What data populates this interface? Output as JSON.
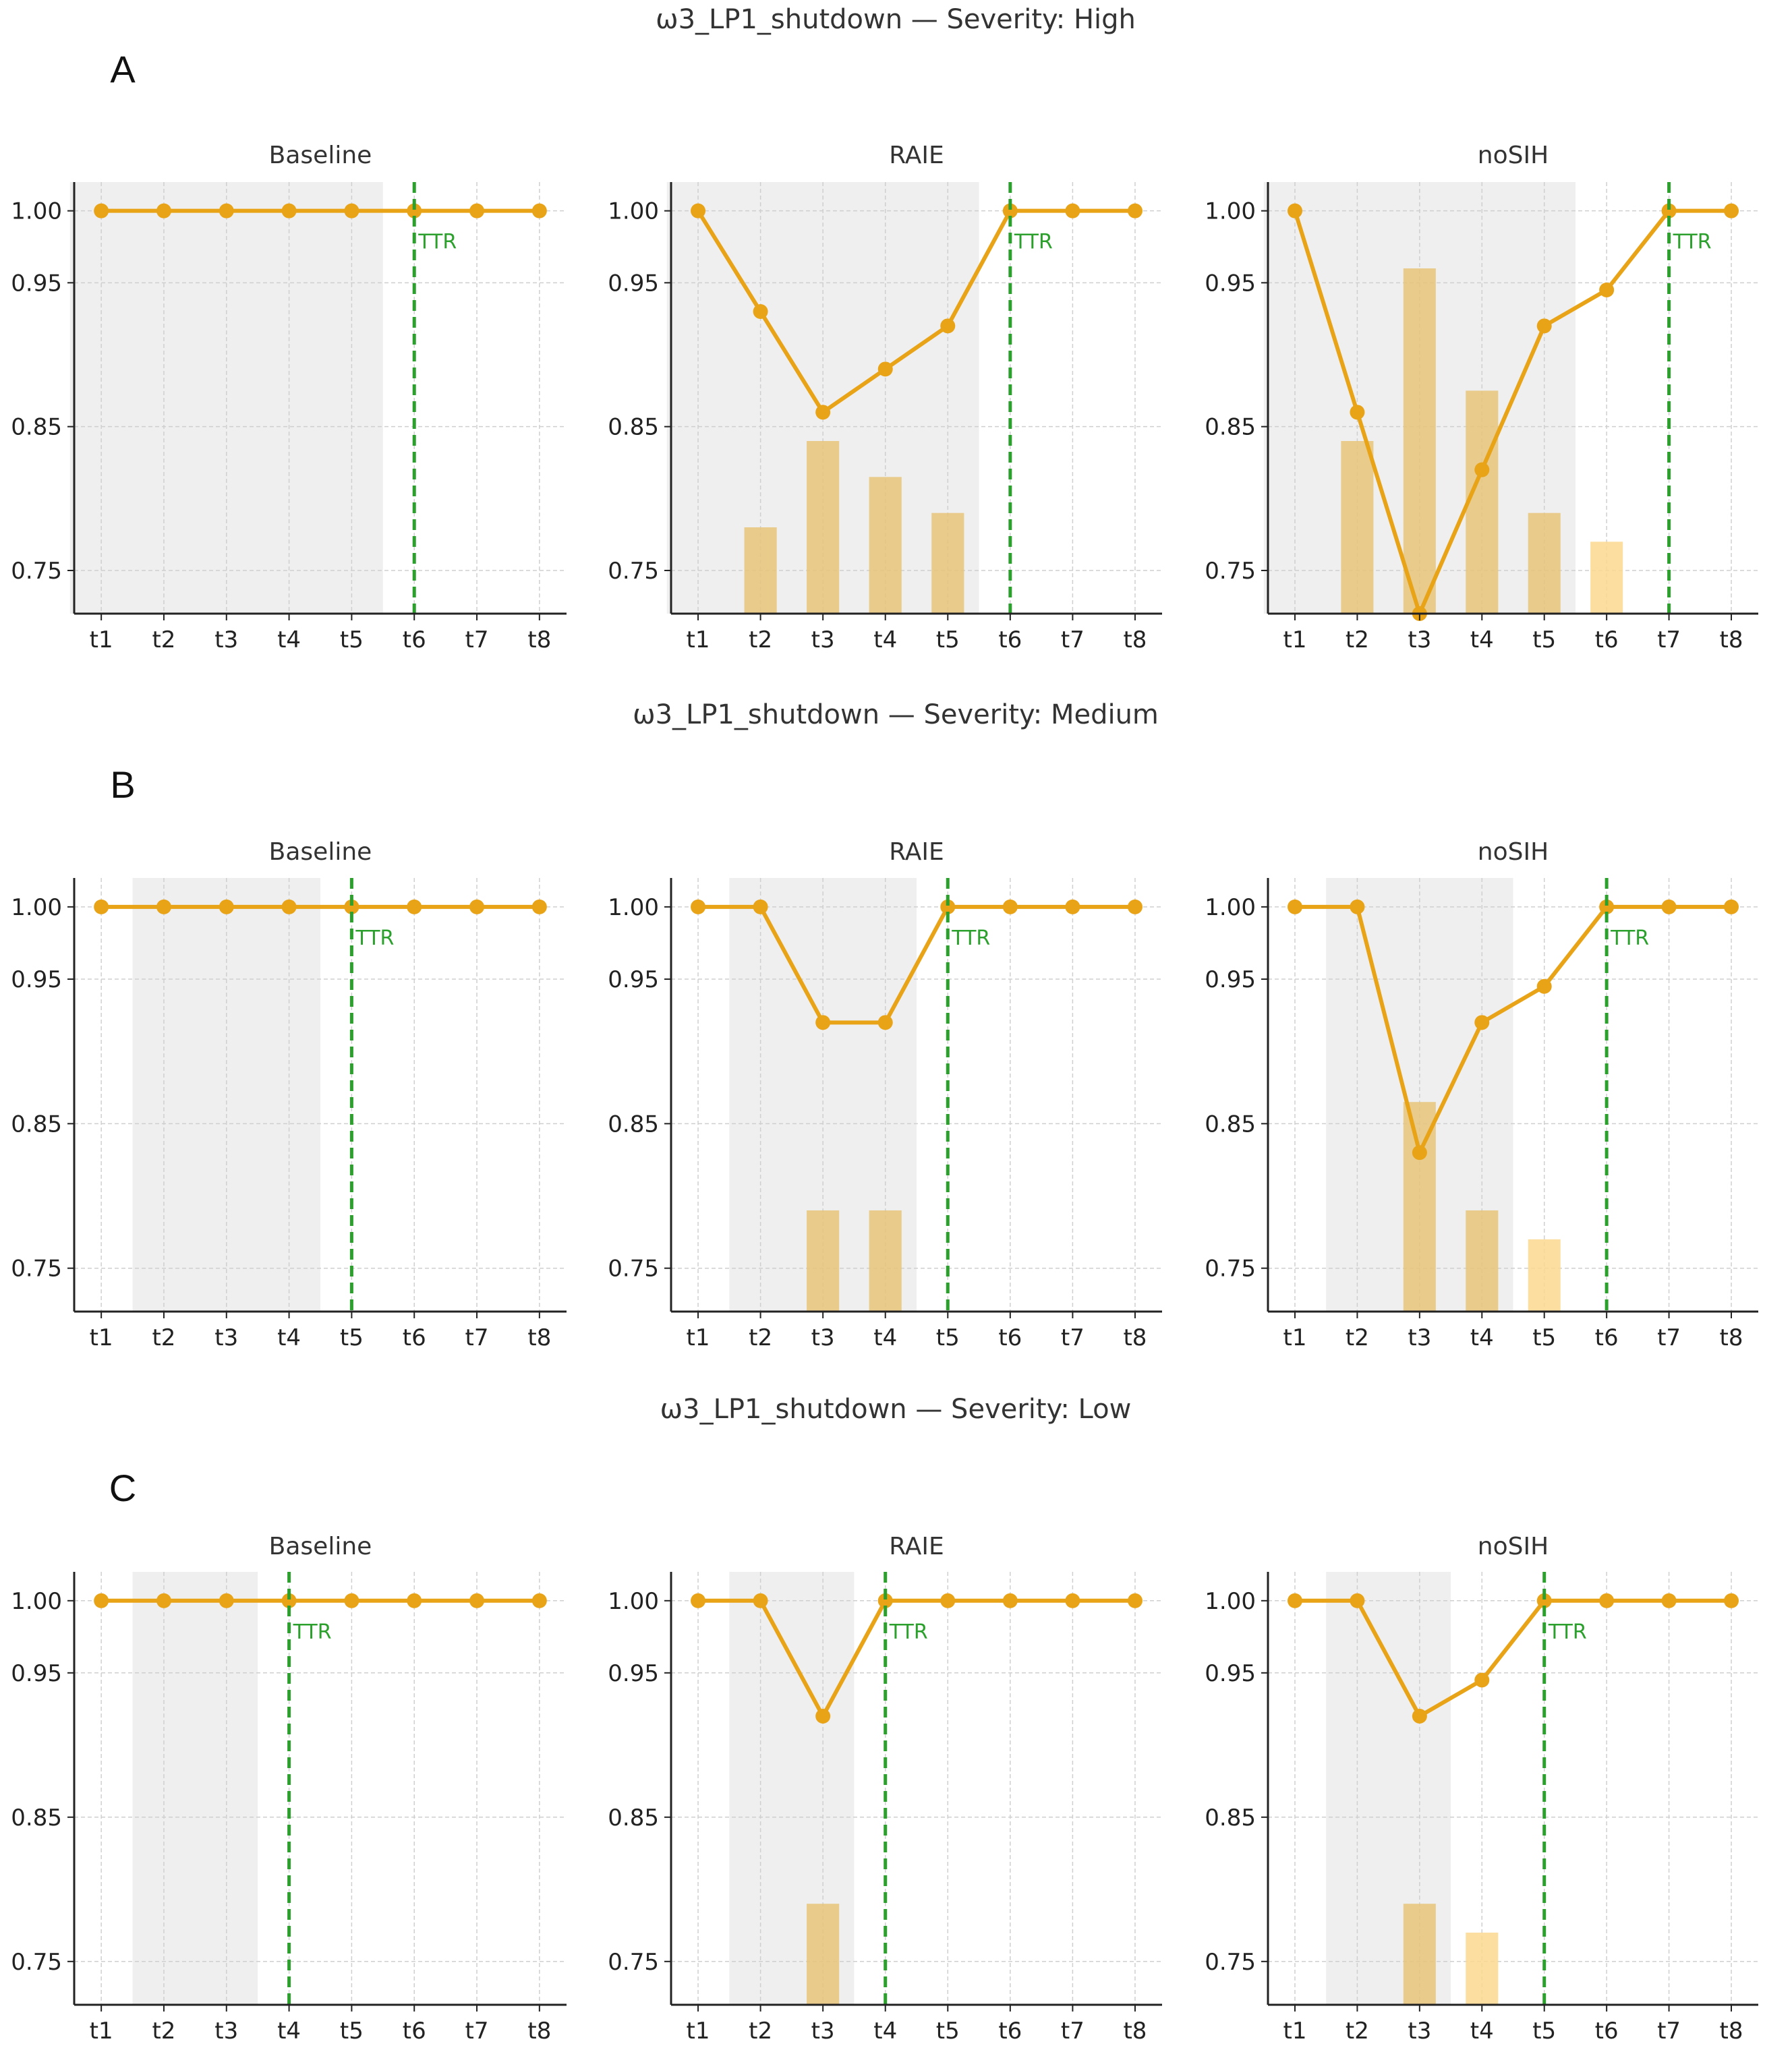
{
  "colors": {
    "line": "#e8a317",
    "bar": "#e8c47a",
    "bar_light": "#fbd98f",
    "shade": "#efefef",
    "ttr": "#2ca02c",
    "grid": "#cfcfcf",
    "axis": "#222222"
  },
  "chart_data": [
    {
      "panel": "A",
      "suptitle": "ω3_LP1_shutdown — Severity: High",
      "severity": "High",
      "subplots": [
        {
          "title": "Baseline",
          "type": "line",
          "categories": [
            "t1",
            "t2",
            "t3",
            "t4",
            "t5",
            "t6",
            "t7",
            "t8"
          ],
          "values": [
            1.0,
            1.0,
            1.0,
            1.0,
            1.0,
            1.0,
            1.0,
            1.0
          ],
          "bars": [
            null,
            null,
            null,
            null,
            null,
            null,
            null,
            null
          ],
          "shade_from": "t1",
          "shade_to": "t5",
          "ttr": "t6",
          "ttr_label": "TTR"
        },
        {
          "title": "RAIE",
          "type": "line",
          "categories": [
            "t1",
            "t2",
            "t3",
            "t4",
            "t5",
            "t6",
            "t7",
            "t8"
          ],
          "values": [
            1.0,
            0.93,
            0.86,
            0.89,
            0.92,
            1.0,
            1.0,
            1.0
          ],
          "bars": [
            null,
            0.78,
            0.84,
            0.815,
            0.79,
            null,
            null,
            null
          ],
          "shade_from": "t1",
          "shade_to": "t5",
          "ttr": "t6",
          "ttr_label": "TTR"
        },
        {
          "title": "noSIH",
          "type": "line",
          "categories": [
            "t1",
            "t2",
            "t3",
            "t4",
            "t5",
            "t6",
            "t7",
            "t8"
          ],
          "values": [
            1.0,
            0.86,
            0.72,
            0.82,
            0.92,
            0.945,
            1.0,
            1.0
          ],
          "bars": [
            null,
            0.84,
            0.96,
            0.875,
            0.79,
            0.77,
            null,
            null
          ],
          "shade_from": "t1",
          "shade_to": "t5",
          "ttr": "t7",
          "ttr_label": "TTR"
        }
      ]
    },
    {
      "panel": "B",
      "suptitle": "ω3_LP1_shutdown — Severity: Medium",
      "severity": "Medium",
      "subplots": [
        {
          "title": "Baseline",
          "type": "line",
          "categories": [
            "t1",
            "t2",
            "t3",
            "t4",
            "t5",
            "t6",
            "t7",
            "t8"
          ],
          "values": [
            1.0,
            1.0,
            1.0,
            1.0,
            1.0,
            1.0,
            1.0,
            1.0
          ],
          "bars": [
            null,
            null,
            null,
            null,
            null,
            null,
            null,
            null
          ],
          "shade_from": "t2",
          "shade_to": "t4",
          "ttr": "t5",
          "ttr_label": "TTR"
        },
        {
          "title": "RAIE",
          "type": "line",
          "categories": [
            "t1",
            "t2",
            "t3",
            "t4",
            "t5",
            "t6",
            "t7",
            "t8"
          ],
          "values": [
            1.0,
            1.0,
            0.92,
            0.92,
            1.0,
            1.0,
            1.0,
            1.0
          ],
          "bars": [
            null,
            null,
            0.79,
            0.79,
            null,
            null,
            null,
            null
          ],
          "shade_from": "t2",
          "shade_to": "t4",
          "ttr": "t5",
          "ttr_label": "TTR"
        },
        {
          "title": "noSIH",
          "type": "line",
          "categories": [
            "t1",
            "t2",
            "t3",
            "t4",
            "t5",
            "t6",
            "t7",
            "t8"
          ],
          "values": [
            1.0,
            1.0,
            0.83,
            0.92,
            0.945,
            1.0,
            1.0,
            1.0
          ],
          "bars": [
            null,
            null,
            0.865,
            0.79,
            0.77,
            null,
            null,
            null
          ],
          "shade_from": "t2",
          "shade_to": "t4",
          "ttr": "t6",
          "ttr_label": "TTR"
        }
      ]
    },
    {
      "panel": "C",
      "suptitle": "ω3_LP1_shutdown — Severity: Low",
      "severity": "Low",
      "subplots": [
        {
          "title": "Baseline",
          "type": "line",
          "categories": [
            "t1",
            "t2",
            "t3",
            "t4",
            "t5",
            "t6",
            "t7",
            "t8"
          ],
          "values": [
            1.0,
            1.0,
            1.0,
            1.0,
            1.0,
            1.0,
            1.0,
            1.0
          ],
          "bars": [
            null,
            null,
            null,
            null,
            null,
            null,
            null,
            null
          ],
          "shade_from": "t2",
          "shade_to": "t3",
          "ttr": "t4",
          "ttr_label": "TTR"
        },
        {
          "title": "RAIE",
          "type": "line",
          "categories": [
            "t1",
            "t2",
            "t3",
            "t4",
            "t5",
            "t6",
            "t7",
            "t8"
          ],
          "values": [
            1.0,
            1.0,
            0.92,
            1.0,
            1.0,
            1.0,
            1.0,
            1.0
          ],
          "bars": [
            null,
            null,
            0.79,
            null,
            null,
            null,
            null,
            null
          ],
          "shade_from": "t2",
          "shade_to": "t3",
          "ttr": "t4",
          "ttr_label": "TTR"
        },
        {
          "title": "noSIH",
          "type": "line",
          "categories": [
            "t1",
            "t2",
            "t3",
            "t4",
            "t5",
            "t6",
            "t7",
            "t8"
          ],
          "values": [
            1.0,
            1.0,
            0.92,
            0.945,
            1.0,
            1.0,
            1.0,
            1.0
          ],
          "bars": [
            null,
            null,
            0.79,
            0.77,
            null,
            null,
            null,
            null
          ],
          "shade_from": "t2",
          "shade_to": "t3",
          "ttr": "t5",
          "ttr_label": "TTR"
        }
      ]
    }
  ],
  "y_axis": {
    "ticks": [
      0.75,
      0.85,
      0.95,
      1.0
    ],
    "tick_labels": [
      "0.75",
      "0.85",
      "0.95",
      "1.00"
    ],
    "ylim": [
      0.72,
      1.02
    ]
  }
}
